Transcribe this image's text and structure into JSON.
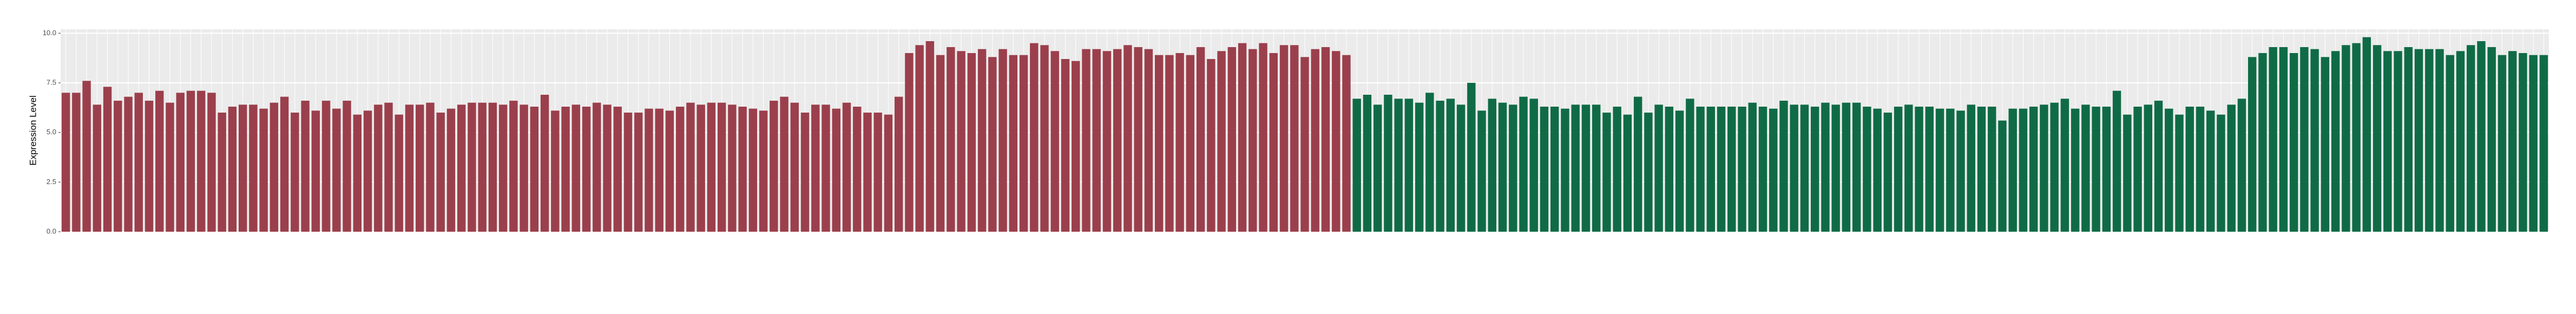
{
  "chart_data": {
    "type": "bar",
    "ylabel": "Expression Level",
    "ylim": [
      0,
      10.2
    ],
    "yticks": [
      {
        "value": 0,
        "label": "0.0"
      },
      {
        "value": 2.5,
        "label": "2.5"
      },
      {
        "value": 5,
        "label": "5.0"
      },
      {
        "value": 7.5,
        "label": "7.5"
      },
      {
        "value": 10,
        "label": "10.0"
      }
    ],
    "grid": true,
    "series": [
      {
        "color": "#9b3f4c",
        "values": [
          7.0,
          7.0,
          7.6,
          6.4,
          7.3,
          6.6,
          6.8,
          7.0,
          6.6,
          7.1,
          6.5,
          7.0,
          7.1,
          7.1,
          7.0,
          6.0,
          6.3,
          6.4,
          6.4,
          6.2,
          6.5,
          6.8,
          6.0,
          6.6,
          6.1,
          6.6,
          6.2,
          6.6,
          5.9,
          6.1,
          6.4,
          6.5,
          5.9,
          6.4,
          6.4,
          6.5,
          6.0,
          6.2,
          6.4,
          6.5,
          6.5,
          6.5,
          6.4,
          6.6,
          6.4,
          6.3,
          6.9,
          6.1,
          6.3,
          6.4,
          6.3,
          6.5,
          6.4,
          6.3,
          6.0,
          6.0,
          6.2,
          6.2,
          6.1,
          6.3,
          6.5,
          6.4,
          6.5,
          6.5,
          6.4,
          6.3,
          6.2,
          6.1,
          6.6,
          6.8,
          6.5,
          6.0,
          6.4,
          6.4,
          6.2,
          6.5,
          6.3,
          6.0,
          6.0,
          5.9,
          6.8,
          9.0,
          9.4,
          9.6,
          8.9,
          9.3,
          9.1,
          9.0,
          9.2,
          8.8,
          9.2,
          8.9,
          8.9,
          9.5,
          9.4,
          9.1,
          8.7,
          8.6,
          9.2,
          9.2,
          9.1,
          9.2,
          9.4,
          9.3,
          9.2,
          8.9,
          8.9,
          9.0,
          8.9,
          9.3,
          8.7,
          9.1,
          9.3,
          9.5,
          9.2,
          9.5,
          9.0,
          9.4,
          9.4,
          8.8,
          9.2,
          9.3,
          9.1,
          8.9
        ]
      },
      {
        "color": "#0f6b46",
        "values": [
          6.7,
          6.9,
          6.4,
          6.9,
          6.7,
          6.7,
          6.5,
          7.0,
          6.6,
          6.7,
          6.4,
          7.5,
          6.1,
          6.7,
          6.5,
          6.4,
          6.8,
          6.7,
          6.3,
          6.3,
          6.2,
          6.4,
          6.4,
          6.4,
          6.0,
          6.3,
          5.9,
          6.8,
          6.0,
          6.4,
          6.3,
          6.1,
          6.7,
          6.3,
          6.3,
          6.3,
          6.3,
          6.3,
          6.5,
          6.3,
          6.2,
          6.6,
          6.4,
          6.4,
          6.3,
          6.5,
          6.4,
          6.5,
          6.5,
          6.3,
          6.2,
          6.0,
          6.3,
          6.4,
          6.3,
          6.3,
          6.2,
          6.2,
          6.1,
          6.4,
          6.3,
          6.3,
          5.6,
          6.2,
          6.2,
          6.3,
          6.4,
          6.5,
          6.7,
          6.2,
          6.4,
          6.3,
          6.3,
          7.1,
          5.9,
          6.3,
          6.4,
          6.6,
          6.2,
          5.9,
          6.3,
          6.3,
          6.1,
          5.9,
          6.4,
          6.7,
          8.8,
          9.0,
          9.3,
          9.3,
          9.0,
          9.3,
          9.2,
          8.8,
          9.1,
          9.4,
          9.5,
          9.8,
          9.4,
          9.1,
          9.1,
          9.3,
          9.2,
          9.2,
          9.2,
          8.9,
          9.1,
          9.4,
          9.6,
          9.3,
          8.9,
          9.1,
          9.0,
          8.9,
          8.9
        ]
      }
    ]
  }
}
